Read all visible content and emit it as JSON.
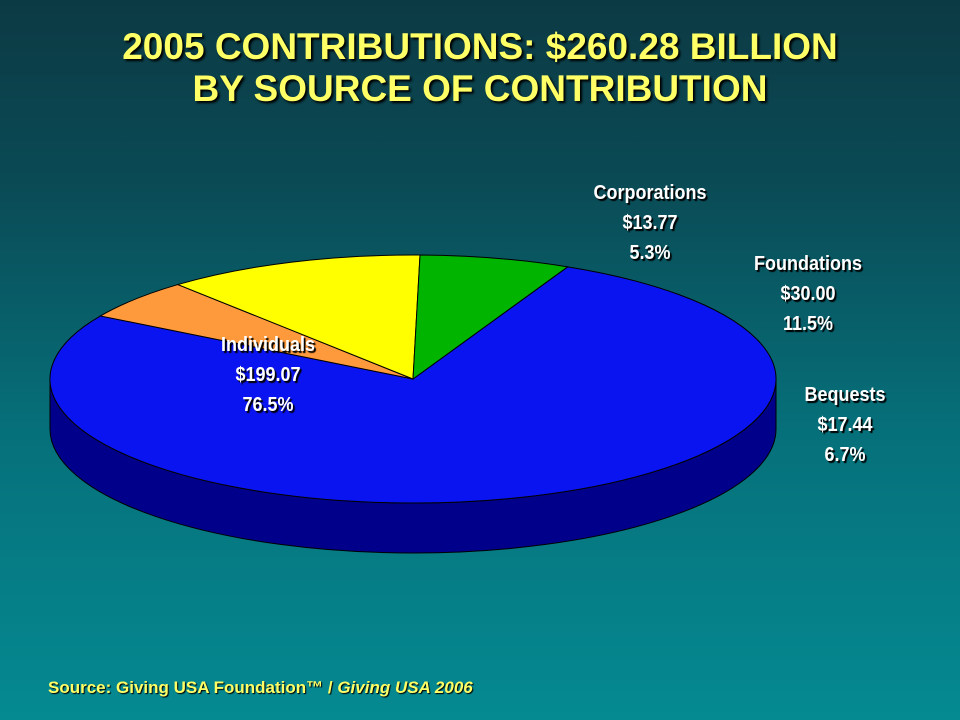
{
  "title_line1": "2005 CONTRIBUTIONS: $260.28 BILLION",
  "title_line2": "BY SOURCE OF CONTRIBUTION",
  "source": {
    "prefix": "Source: Giving USA Foundation™ / ",
    "publication": "Giving USA 2006"
  },
  "chart_data": {
    "type": "pie",
    "total_label": "$260.28 BILLION",
    "slices": [
      {
        "name": "Individuals",
        "value_label": "$199.07",
        "value": 199.07,
        "percent_label": "76.5%",
        "percent": 76.5,
        "color": "#0a14f0",
        "side": "#00008a"
      },
      {
        "name": "Corporations",
        "value_label": "$13.77",
        "value": 13.77,
        "percent_label": "5.3%",
        "percent": 5.3,
        "color": "#ff9a3c",
        "side": "#a85a10"
      },
      {
        "name": "Foundations",
        "value_label": "$30.00",
        "value": 30.0,
        "percent_label": "11.5%",
        "percent": 11.5,
        "color": "#ffff00",
        "side": "#8a8a00"
      },
      {
        "name": "Bequests",
        "value_label": "$17.44",
        "value": 17.44,
        "percent_label": "6.7%",
        "percent": 6.7,
        "color": "#00b400",
        "side": "#005a00"
      }
    ]
  }
}
